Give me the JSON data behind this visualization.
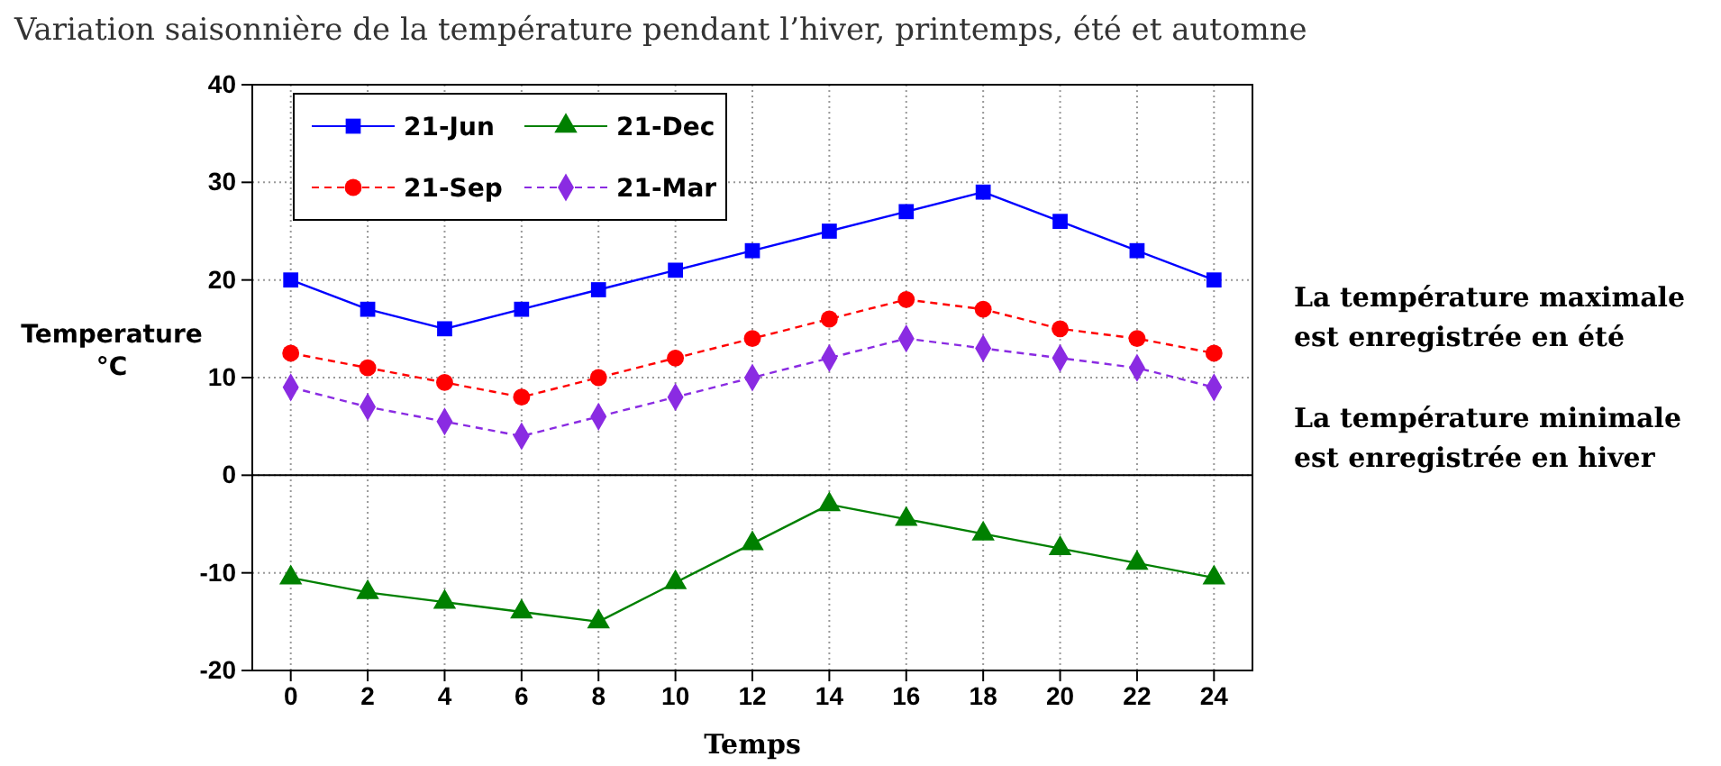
{
  "chart_data": {
    "type": "line",
    "title": "Variation saisonnière de la température pendant l’hiver, printemps, été et automne",
    "xlabel": "Temps",
    "ylabel": "Temperature\n°C",
    "x": [
      0,
      2,
      4,
      6,
      8,
      10,
      12,
      14,
      16,
      18,
      20,
      22,
      24
    ],
    "xlim": [
      -1,
      25
    ],
    "xticks": [
      0,
      2,
      4,
      6,
      8,
      10,
      12,
      14,
      16,
      18,
      20,
      22,
      24
    ],
    "ylim": [
      -20,
      40
    ],
    "yticks": [
      -20,
      -10,
      0,
      10,
      20,
      30,
      40
    ],
    "grid": true,
    "legend": "top left",
    "series": [
      {
        "name": "21-Jun",
        "color": "#0000ff",
        "marker": "square",
        "line_style": "solid",
        "values": [
          20,
          17,
          15,
          17,
          19,
          21,
          23,
          25,
          27,
          29,
          26,
          23,
          20
        ]
      },
      {
        "name": "21-Dec",
        "color": "#008000",
        "marker": "triangle",
        "line_style": "solid",
        "values": [
          -10.5,
          -12,
          -13,
          -14,
          -15,
          -11,
          -7,
          -3,
          -4.5,
          -6,
          -7.5,
          -9,
          -10.5
        ]
      },
      {
        "name": "21-Sep",
        "color": "#ff0000",
        "marker": "circle",
        "line_style": "dashed",
        "values": [
          12.5,
          11,
          9.5,
          8,
          10,
          12,
          14,
          16,
          18,
          17,
          15,
          14,
          12.5
        ]
      },
      {
        "name": "21-Mar",
        "color": "#8a2be2",
        "marker": "diamond",
        "line_style": "dashed",
        "values": [
          9,
          7,
          5.5,
          4,
          6,
          8,
          10,
          12,
          14,
          13,
          12,
          11,
          9
        ]
      }
    ],
    "annotations": [
      "La température maximale\nest enregistrée en été",
      "La température minimale\nest enregistrée en hiver"
    ]
  }
}
